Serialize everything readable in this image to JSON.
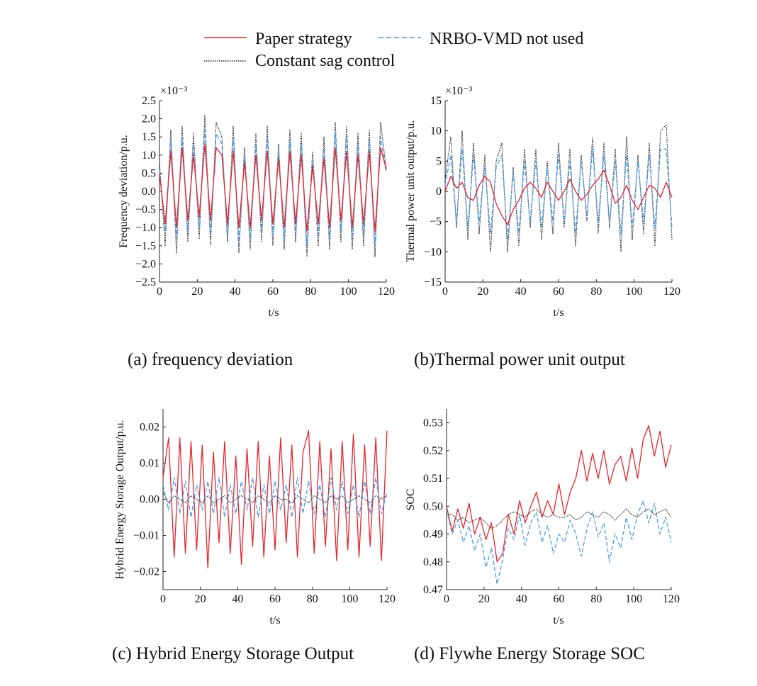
{
  "legend": {
    "entries": [
      {
        "series_key": "paper",
        "label": "Paper strategy"
      },
      {
        "series_key": "nrbo",
        "label": "NRBO-VMD not used"
      },
      {
        "series_key": "constant",
        "label": "Constant sag control"
      }
    ]
  },
  "colors": {
    "paper": "#e8232b",
    "nrbo": "#4a9ee6",
    "constant": "#222222"
  },
  "chart_data": [
    {
      "id": "a",
      "type": "line",
      "caption": "(a) frequency deviation",
      "xlabel": "t/s",
      "ylabel": "Frequency deviation/p.u.",
      "scale_label": "×10⁻³",
      "xlim": [
        0,
        120
      ],
      "ylim": [
        -2.5,
        2.5
      ],
      "xticks": [
        0,
        20,
        40,
        60,
        80,
        100,
        120
      ],
      "yticks": [
        -2.5,
        -2.0,
        -1.5,
        -1.0,
        -0.5,
        0.0,
        0.5,
        1.0,
        1.5,
        2.0,
        2.5
      ],
      "ytick_labels": [
        "−2.5",
        "−2.0",
        "−1.5",
        "−1.0",
        "−0.5",
        "0.0",
        "0.5",
        "1.0",
        "1.5",
        "2.0",
        "2.5"
      ],
      "x": [
        0,
        3,
        6,
        9,
        12,
        15,
        18,
        21,
        24,
        27,
        30,
        33,
        36,
        39,
        42,
        45,
        48,
        51,
        54,
        57,
        60,
        63,
        66,
        69,
        72,
        75,
        78,
        81,
        84,
        87,
        90,
        93,
        96,
        99,
        102,
        105,
        108,
        111,
        114,
        117,
        120
      ],
      "series": [
        {
          "key": "constant",
          "values": [
            0.8,
            -1.5,
            1.7,
            -1.7,
            1.8,
            -1.4,
            1.6,
            -1.3,
            2.1,
            -1.5,
            1.9,
            1.5,
            -1.4,
            1.8,
            -1.7,
            1.2,
            -1.6,
            1.6,
            -1.4,
            1.8,
            -1.5,
            1.3,
            -1.6,
            1.7,
            -1.4,
            1.6,
            -1.8,
            1.1,
            -1.5,
            1.5,
            -1.6,
            1.9,
            -1.4,
            1.8,
            -1.6,
            1.6,
            -1.5,
            1.7,
            -1.8,
            1.9,
            0.6
          ]
        },
        {
          "key": "nrbo",
          "values": [
            0.6,
            -1.1,
            1.4,
            -1.3,
            1.5,
            -1.1,
            1.3,
            -1.0,
            1.7,
            -1.2,
            1.6,
            1.3,
            -1.2,
            1.5,
            -1.4,
            1.0,
            -1.3,
            1.3,
            -1.1,
            1.5,
            -1.2,
            1.1,
            -1.3,
            1.4,
            -1.2,
            1.3,
            -1.5,
            0.9,
            -1.2,
            1.2,
            -1.3,
            1.6,
            -1.1,
            1.5,
            -1.3,
            1.3,
            -1.2,
            1.4,
            -1.5,
            1.5,
            0.5
          ]
        },
        {
          "key": "paper",
          "values": [
            0.5,
            -0.9,
            1.1,
            -1.0,
            1.2,
            -0.8,
            1.0,
            -0.7,
            1.3,
            -0.8,
            1.2,
            1.0,
            -0.9,
            1.1,
            -1.0,
            0.8,
            -1.0,
            1.0,
            -0.8,
            1.1,
            -0.9,
            0.9,
            -1.0,
            1.1,
            -0.9,
            1.0,
            -1.1,
            0.7,
            -0.9,
            0.9,
            -1.0,
            1.2,
            -0.8,
            1.1,
            -1.0,
            1.0,
            -0.9,
            1.1,
            -1.1,
            1.2,
            0.6
          ]
        }
      ]
    },
    {
      "id": "b",
      "type": "line",
      "caption": "(b)Thermal power unit output",
      "xlabel": "t/s",
      "ylabel": "Thermal power unit output/p.u.",
      "scale_label": "×10⁻³",
      "xlim": [
        0,
        120
      ],
      "ylim": [
        -15,
        15
      ],
      "xticks": [
        0,
        20,
        40,
        60,
        80,
        100,
        120
      ],
      "yticks": [
        -15,
        -10,
        -5,
        0,
        5,
        10,
        15
      ],
      "ytick_labels": [
        "−15",
        "−10",
        "−5",
        "0",
        "5",
        "10",
        "15"
      ],
      "x": [
        0,
        3,
        6,
        9,
        12,
        15,
        18,
        21,
        24,
        27,
        30,
        33,
        36,
        39,
        42,
        45,
        48,
        51,
        54,
        57,
        60,
        63,
        66,
        69,
        72,
        75,
        78,
        81,
        84,
        87,
        90,
        93,
        96,
        99,
        102,
        105,
        108,
        111,
        114,
        117,
        120
      ],
      "series": [
        {
          "key": "constant",
          "values": [
            2,
            9,
            -6,
            10,
            -8,
            8,
            -7,
            6,
            -10,
            5,
            8,
            -10,
            4,
            -9,
            7,
            -6,
            7,
            -8,
            5,
            -7,
            8,
            -6,
            7,
            -9,
            6,
            -5,
            9,
            -7,
            8,
            -6,
            7,
            -10,
            9,
            -8,
            6,
            -7,
            8,
            -9,
            10,
            11,
            -8
          ]
        },
        {
          "key": "nrbo",
          "values": [
            1,
            6,
            -5,
            7,
            -6,
            6,
            -5,
            4,
            -7,
            4,
            6,
            -8,
            3,
            -7,
            5,
            -5,
            5,
            -6,
            4,
            -5,
            6,
            -5,
            5,
            -7,
            5,
            -4,
            7,
            -5,
            6,
            -5,
            5,
            -7,
            6,
            -6,
            5,
            -5,
            6,
            -6,
            7,
            7,
            -6
          ]
        },
        {
          "key": "paper",
          "values": [
            0,
            2.5,
            0.5,
            1.5,
            -1,
            -1.5,
            1,
            2.5,
            1.5,
            -2,
            -4,
            -5.5,
            -3,
            -1.5,
            0.5,
            1.5,
            0.5,
            -1,
            1.5,
            0,
            -1.5,
            0,
            2,
            0,
            -1.5,
            -0.5,
            1,
            2,
            3.5,
            1,
            -2,
            -1,
            1,
            -1.5,
            -3,
            -1,
            1,
            0.5,
            -1,
            1.5,
            -1
          ]
        }
      ]
    },
    {
      "id": "c",
      "type": "line",
      "caption": "(c) Hybrid Energy Storage Output",
      "xlabel": "t/s",
      "ylabel": "Hybrid Energy Storage Output/p.u.",
      "xlim": [
        0,
        120
      ],
      "ylim": [
        -0.025,
        0.025
      ],
      "xticks": [
        0,
        20,
        40,
        60,
        80,
        100,
        120
      ],
      "yticks": [
        -0.02,
        -0.01,
        0.0,
        0.01,
        0.02
      ],
      "ytick_labels": [
        "−0.02",
        "−0.01",
        "0.00",
        "0.01",
        "0.02"
      ],
      "x": [
        0,
        3,
        6,
        9,
        12,
        15,
        18,
        21,
        24,
        27,
        30,
        33,
        36,
        39,
        42,
        45,
        48,
        51,
        54,
        57,
        60,
        63,
        66,
        69,
        72,
        75,
        78,
        81,
        84,
        87,
        90,
        93,
        96,
        99,
        102,
        105,
        108,
        111,
        114,
        117,
        120
      ],
      "series": [
        {
          "key": "paper",
          "values": [
            0.006,
            0.017,
            -0.016,
            0.017,
            -0.015,
            0.016,
            -0.014,
            0.015,
            -0.019,
            0.013,
            -0.012,
            0.016,
            -0.015,
            0.012,
            -0.018,
            0.014,
            -0.013,
            0.016,
            -0.016,
            0.012,
            -0.014,
            0.017,
            -0.012,
            0.015,
            -0.016,
            0.013,
            0.019,
            -0.015,
            0.016,
            -0.013,
            0.014,
            -0.017,
            0.016,
            -0.014,
            0.018,
            -0.016,
            0.015,
            -0.013,
            0.017,
            -0.017,
            0.019
          ]
        },
        {
          "key": "nrbo",
          "values": [
            0.004,
            -0.003,
            0.006,
            -0.004,
            0.005,
            -0.005,
            0.004,
            -0.003,
            0.005,
            -0.004,
            0.006,
            -0.005,
            0.004,
            -0.004,
            0.005,
            -0.003,
            0.006,
            -0.005,
            0.004,
            -0.004,
            0.005,
            -0.003,
            0.004,
            -0.005,
            0.006,
            -0.004,
            0.005,
            -0.004,
            0.004,
            -0.005,
            0.006,
            -0.003,
            0.005,
            -0.004,
            0.004,
            -0.005,
            0.005,
            -0.004,
            0.006,
            -0.004,
            0.002
          ]
        },
        {
          "key": "constant",
          "values": [
            0.002,
            -0.001,
            0.001,
            0.0,
            -0.001,
            0.001,
            0.0,
            -0.001,
            0.001,
            -0.001,
            0.0,
            0.001,
            -0.001,
            0.0,
            0.001,
            0.0,
            -0.001,
            0.001,
            0.0,
            -0.001,
            0.001,
            0.0,
            0.0,
            -0.001,
            0.001,
            0.0,
            -0.001,
            0.001,
            0.0,
            -0.001,
            0.001,
            0.0,
            0.001,
            -0.001,
            0.0,
            0.001,
            0.0,
            -0.001,
            0.001,
            0.0,
            0.001
          ]
        }
      ]
    },
    {
      "id": "d",
      "type": "line",
      "caption": "(d) Flywhe Energy Storage SOC",
      "xlabel": "t/s",
      "ylabel": "SOC",
      "xlim": [
        0,
        120
      ],
      "ylim": [
        0.47,
        0.535
      ],
      "xticks": [
        0,
        20,
        40,
        60,
        80,
        100,
        120
      ],
      "yticks": [
        0.47,
        0.48,
        0.49,
        0.5,
        0.51,
        0.52,
        0.53
      ],
      "ytick_labels": [
        "0.47",
        "0.48",
        "0.49",
        "0.50",
        "0.51",
        "0.52",
        "0.53"
      ],
      "x": [
        0,
        3,
        6,
        9,
        12,
        15,
        18,
        21,
        24,
        27,
        30,
        33,
        36,
        39,
        42,
        45,
        48,
        51,
        54,
        57,
        60,
        63,
        66,
        69,
        72,
        75,
        78,
        81,
        84,
        87,
        90,
        93,
        96,
        99,
        102,
        105,
        108,
        111,
        114,
        117,
        120
      ],
      "series": [
        {
          "key": "paper",
          "values": [
            0.5,
            0.491,
            0.499,
            0.492,
            0.501,
            0.49,
            0.496,
            0.488,
            0.494,
            0.48,
            0.483,
            0.497,
            0.49,
            0.502,
            0.494,
            0.5,
            0.505,
            0.496,
            0.502,
            0.497,
            0.508,
            0.497,
            0.505,
            0.51,
            0.52,
            0.509,
            0.519,
            0.51,
            0.52,
            0.508,
            0.515,
            0.518,
            0.509,
            0.521,
            0.51,
            0.524,
            0.529,
            0.518,
            0.527,
            0.514,
            0.522
          ]
        },
        {
          "key": "nrbo",
          "values": [
            0.499,
            0.49,
            0.495,
            0.487,
            0.493,
            0.484,
            0.49,
            0.478,
            0.485,
            0.472,
            0.481,
            0.492,
            0.488,
            0.497,
            0.486,
            0.494,
            0.498,
            0.487,
            0.493,
            0.483,
            0.49,
            0.487,
            0.495,
            0.49,
            0.482,
            0.492,
            0.498,
            0.489,
            0.494,
            0.48,
            0.49,
            0.485,
            0.496,
            0.488,
            0.497,
            0.502,
            0.494,
            0.501,
            0.49,
            0.496,
            0.487
          ]
        },
        {
          "key": "constant",
          "values": [
            0.497,
            0.497,
            0.495,
            0.496,
            0.494,
            0.495,
            0.496,
            0.494,
            0.492,
            0.493,
            0.495,
            0.497,
            0.498,
            0.497,
            0.496,
            0.498,
            0.499,
            0.497,
            0.496,
            0.497,
            0.496,
            0.496,
            0.497,
            0.495,
            0.496,
            0.498,
            0.497,
            0.496,
            0.498,
            0.497,
            0.495,
            0.497,
            0.499,
            0.497,
            0.496,
            0.498,
            0.499,
            0.497,
            0.498,
            0.499,
            0.496
          ]
        }
      ]
    }
  ]
}
